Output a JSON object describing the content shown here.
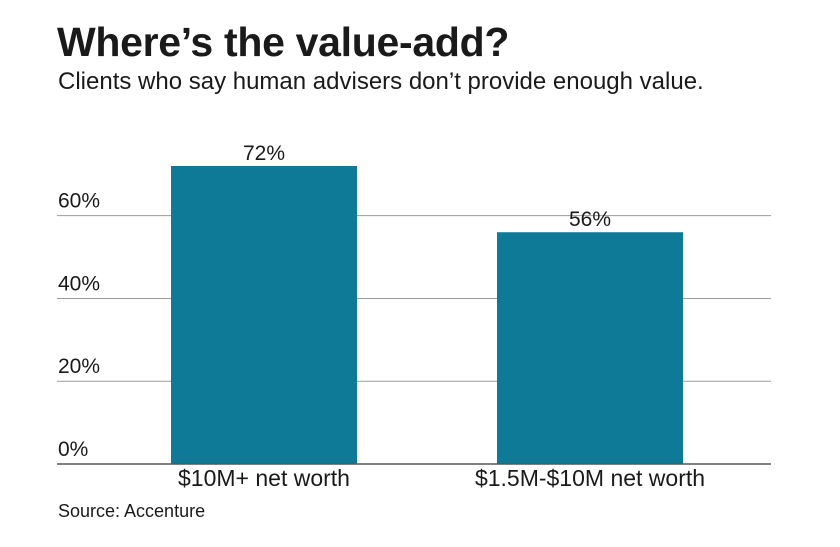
{
  "header": {
    "title": "Where’s the value-add?",
    "subtitle": "Clients who say human advisers don’t provide enough value."
  },
  "footer": {
    "source": "Source: Accenture"
  },
  "colors": {
    "bar": "#0f7a97",
    "grid": "#9a9a9a",
    "axis": "#555555"
  },
  "chart_data": {
    "type": "bar",
    "categories": [
      "$10M+ net worth",
      "$1.5M-$10M net worth"
    ],
    "values": [
      72,
      56
    ],
    "data_labels": [
      "72%",
      "56%"
    ],
    "yticks": [
      0,
      20,
      40,
      60
    ],
    "ytick_labels": [
      "0%",
      "20%",
      "40%",
      "60%"
    ],
    "ylim": [
      0,
      72
    ],
    "grid": true,
    "title": "Where’s the value-add?",
    "subtitle": "Clients who say human advisers don’t provide enough value.",
    "xlabel": "",
    "ylabel": ""
  }
}
